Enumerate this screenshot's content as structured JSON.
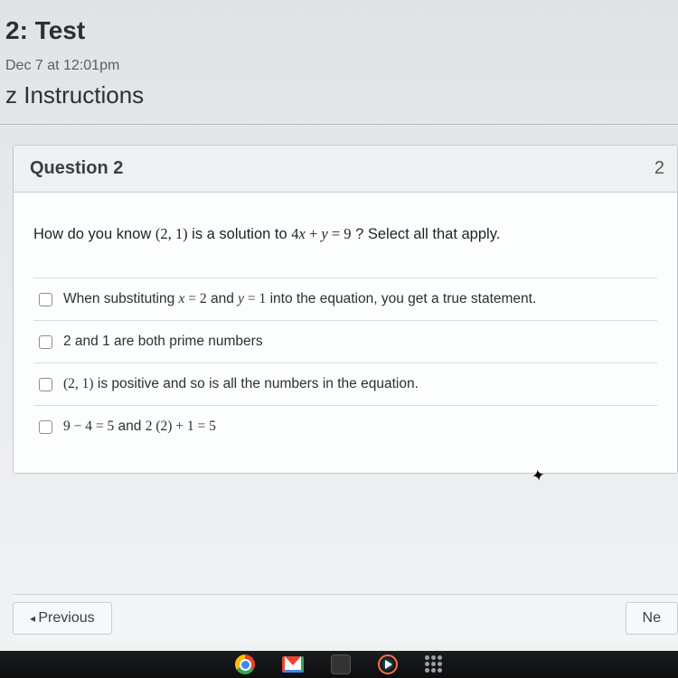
{
  "header": {
    "title": "2: Test",
    "due": "Dec 7 at 12:01pm",
    "instructions_label": "z Instructions"
  },
  "question": {
    "label": "Question 2",
    "points_partial": "2",
    "prompt_pre": "How do  you know  ",
    "prompt_point": "(2, 1)",
    "prompt_mid": " is a solution to  ",
    "prompt_eq": "4x + y = 9",
    "prompt_post": " ?  Select all that apply.",
    "options": [
      {
        "pre": "When substituting  ",
        "m1": "x = 2",
        "mid": "  and  ",
        "m2": "y = 1",
        "post": "  into the equation, you get a true statement."
      },
      {
        "text": "2 and 1 are both prime numbers"
      },
      {
        "m1": "(2, 1)",
        "post": "  is positive and so is all the numbers in the equation."
      },
      {
        "m1": "9 − 4 = 5",
        "mid": "    and    ",
        "m2": "2 (2) + 1 = 5"
      }
    ]
  },
  "nav": {
    "prev": "Previous",
    "next": "Ne"
  },
  "colors": {
    "page_bg_top": "#dfe3e6",
    "card_border": "#c5c9cc",
    "text": "#2b3034"
  }
}
